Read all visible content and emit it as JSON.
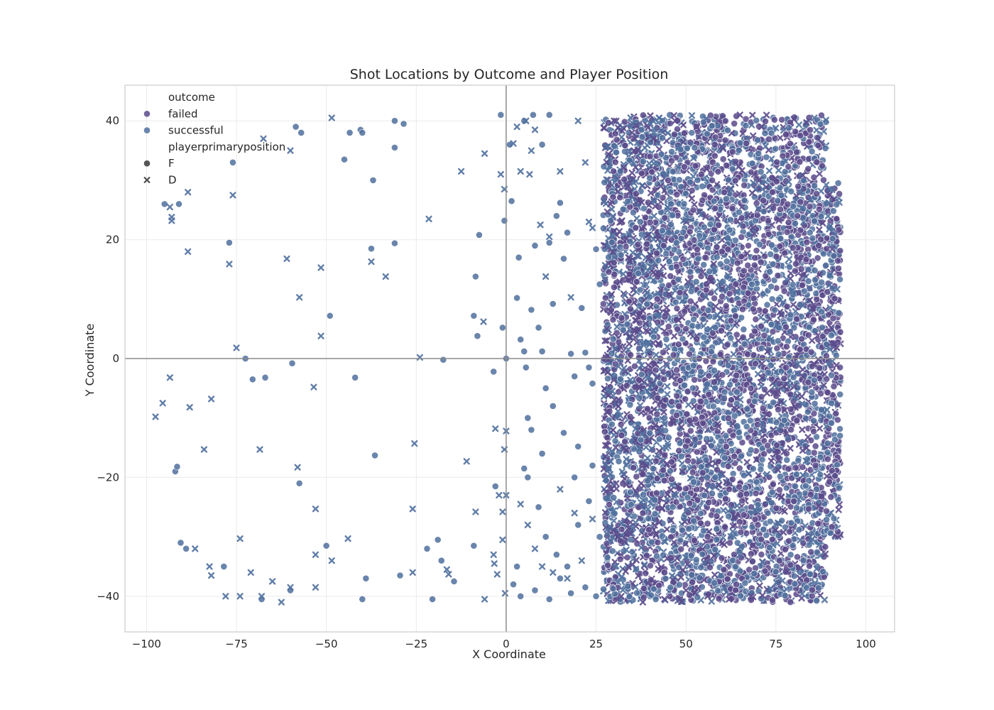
{
  "chart_data": {
    "type": "scatter",
    "title": "Shot Locations by Outcome and Player Position",
    "xlabel": "X Coordinate",
    "ylabel": "Y Coordinate",
    "xlim": [
      -106,
      108
    ],
    "ylim": [
      -46,
      46
    ],
    "xticks": [
      -100,
      -75,
      -50,
      -25,
      0,
      25,
      50,
      75,
      100
    ],
    "yticks": [
      -40,
      -20,
      0,
      20,
      40
    ],
    "xtick_labels": [
      "−100",
      "−75",
      "−50",
      "−25",
      "0",
      "25",
      "50",
      "75",
      "100"
    ],
    "ytick_labels": [
      "−40",
      "−20",
      "0",
      "20",
      "40"
    ],
    "grid": true,
    "reference_lines": {
      "x": 0,
      "y": 0
    },
    "legend": {
      "position": "top-left",
      "entries": [
        {
          "kind": "header",
          "label": "outcome"
        },
        {
          "kind": "hue",
          "label": "failed",
          "color": "#5b4a8b"
        },
        {
          "kind": "hue",
          "label": "successful",
          "color": "#50709e"
        },
        {
          "kind": "header",
          "label": "playerprimaryposition"
        },
        {
          "kind": "style",
          "label": "F",
          "marker": "circle"
        },
        {
          "kind": "style",
          "label": "D",
          "marker": "x"
        }
      ]
    },
    "colors": {
      "failed": "#5b4a8b",
      "successful": "#50709e",
      "style_marker": "#555555"
    },
    "series": [
      {
        "outcome": "successful",
        "marker": "circle",
        "points": [
          [
            -95,
            26
          ],
          [
            -91,
            26
          ],
          [
            -77,
            19.5
          ],
          [
            -76,
            33
          ],
          [
            -72.5,
            0
          ],
          [
            -70.5,
            -3.5
          ],
          [
            -67,
            -3.2
          ],
          [
            -92,
            -19
          ],
          [
            -91.5,
            -18.2
          ],
          [
            -90.5,
            -31
          ],
          [
            -89,
            -32
          ],
          [
            -78.5,
            -35
          ],
          [
            -68,
            -40.5
          ],
          [
            -60,
            -39
          ],
          [
            -58.5,
            39
          ],
          [
            -57,
            38
          ],
          [
            -59.5,
            -0.8
          ],
          [
            -57.5,
            -21
          ],
          [
            -49,
            7.2
          ],
          [
            -45,
            33.5
          ],
          [
            -43.5,
            38
          ],
          [
            -40.5,
            38.5
          ],
          [
            -40,
            38
          ],
          [
            -37,
            30
          ],
          [
            -37.5,
            18.5
          ],
          [
            -31,
            40
          ],
          [
            -31,
            35.5
          ],
          [
            -28.5,
            39.5
          ],
          [
            -31,
            19.4
          ],
          [
            -42,
            -3.2
          ],
          [
            -36.5,
            -16.3
          ],
          [
            -50,
            -31.5
          ],
          [
            -39,
            -37
          ],
          [
            -40,
            -40.5
          ],
          [
            -29.5,
            -36.5
          ],
          [
            -22,
            -32
          ],
          [
            -19,
            -30.5
          ],
          [
            -20.5,
            -40.5
          ],
          [
            -18,
            -34
          ],
          [
            -17.5,
            -0.2
          ],
          [
            -14.5,
            -37.5
          ],
          [
            -9,
            -31.5
          ],
          [
            -8.5,
            13.8
          ],
          [
            -7.5,
            20.8
          ],
          [
            -9,
            7.2
          ],
          [
            -8,
            3.8
          ],
          [
            -3.5,
            -2.2
          ],
          [
            -3,
            -21.5
          ],
          [
            -1,
            5.2
          ],
          [
            0,
            0
          ],
          [
            -1.5,
            41
          ],
          [
            -0.5,
            23.2
          ],
          [
            1,
            36
          ],
          [
            1.5,
            26.5
          ],
          [
            3,
            10.2
          ],
          [
            3.5,
            17
          ],
          [
            4,
            3.2
          ],
          [
            5,
            1.2
          ],
          [
            5.5,
            -1.5
          ],
          [
            6,
            -10
          ],
          [
            7,
            8.2
          ],
          [
            8,
            19
          ],
          [
            9,
            5.2
          ],
          [
            10,
            1.2
          ],
          [
            11,
            -5
          ],
          [
            12,
            19.5
          ],
          [
            13,
            9.2
          ],
          [
            14,
            24
          ],
          [
            15,
            26.2
          ],
          [
            16,
            16.8
          ],
          [
            17,
            21.2
          ],
          [
            18,
            0.8
          ],
          [
            19,
            -3
          ],
          [
            20,
            -14.8
          ],
          [
            21,
            8.5
          ],
          [
            22,
            1
          ],
          [
            23,
            -1.5
          ],
          [
            24,
            -4.2
          ],
          [
            25,
            18.4
          ],
          [
            26,
            12.5
          ],
          [
            7.5,
            41
          ],
          [
            12,
            41
          ],
          [
            5,
            40
          ],
          [
            10,
            36
          ],
          [
            2,
            -38
          ],
          [
            4,
            -40
          ],
          [
            8,
            -39
          ],
          [
            12,
            -40.5
          ],
          [
            15,
            -37
          ],
          [
            18,
            -39.5
          ],
          [
            22,
            -38.5
          ],
          [
            25,
            -40
          ],
          [
            6,
            -20
          ],
          [
            9,
            -25
          ],
          [
            11,
            -30
          ],
          [
            14,
            -33
          ],
          [
            17,
            -35
          ],
          [
            20,
            -28
          ],
          [
            23,
            -24
          ],
          [
            26,
            -30
          ],
          [
            3,
            -35
          ],
          [
            5,
            -18.5
          ],
          [
            7,
            -12
          ],
          [
            10,
            -16
          ],
          [
            13,
            -8
          ],
          [
            16,
            -12.5
          ],
          [
            19,
            -20
          ],
          [
            24,
            -18
          ]
        ]
      },
      {
        "outcome": "successful",
        "marker": "x",
        "points": [
          [
            -97.5,
            -9.8
          ],
          [
            -95.5,
            -7.5
          ],
          [
            -93.5,
            -3.2
          ],
          [
            -93.5,
            25.5
          ],
          [
            -93,
            23.8
          ],
          [
            -93,
            23.2
          ],
          [
            -88.5,
            28
          ],
          [
            -88.5,
            18
          ],
          [
            -88,
            -8.2
          ],
          [
            -86.5,
            -32
          ],
          [
            -84,
            -15.3
          ],
          [
            -82.5,
            -35
          ],
          [
            -82,
            -36.5
          ],
          [
            -82,
            -6.8
          ],
          [
            -78,
            -40
          ],
          [
            -77,
            15.9
          ],
          [
            -76,
            27.5
          ],
          [
            -75,
            1.8
          ],
          [
            -74,
            -40
          ],
          [
            -74,
            -30.3
          ],
          [
            -71,
            -36
          ],
          [
            -68,
            -40
          ],
          [
            -68.5,
            -15.3
          ],
          [
            -67.5,
            37
          ],
          [
            -65,
            -37.5
          ],
          [
            -62.5,
            -41
          ],
          [
            -61,
            16.8
          ],
          [
            -60,
            35
          ],
          [
            -60,
            -38.5
          ],
          [
            -58,
            -18.3
          ],
          [
            -57.5,
            10.3
          ],
          [
            -53.5,
            -4.8
          ],
          [
            -53,
            -25.3
          ],
          [
            -53,
            -33
          ],
          [
            -53,
            -38.5
          ],
          [
            -51.5,
            15.3
          ],
          [
            -51.5,
            3.8
          ],
          [
            -48.5,
            40.5
          ],
          [
            -48.5,
            -34
          ],
          [
            -44,
            -30.3
          ],
          [
            -37.5,
            16.3
          ],
          [
            -33.5,
            13.8
          ],
          [
            -26,
            -25.3
          ],
          [
            -26,
            -36
          ],
          [
            -25.5,
            -14.3
          ],
          [
            -24,
            0.2
          ],
          [
            -21.5,
            23.5
          ],
          [
            -16.5,
            -35.5
          ],
          [
            -16,
            -36.3
          ],
          [
            -12.5,
            31.5
          ],
          [
            -11,
            -17.3
          ],
          [
            -8.5,
            -25.8
          ],
          [
            -6,
            34.5
          ],
          [
            -6,
            -40.5
          ],
          [
            -6.3,
            6.2
          ],
          [
            -3.5,
            -33
          ],
          [
            -3.3,
            -34.5
          ],
          [
            -3,
            -11.8
          ],
          [
            -2.5,
            -36.3
          ],
          [
            -2,
            -23
          ],
          [
            -1.5,
            31
          ],
          [
            -1,
            -25.8
          ],
          [
            -1,
            -30.5
          ],
          [
            -0.5,
            28.5
          ],
          [
            -0.5,
            -15.3
          ],
          [
            0,
            -12.2
          ],
          [
            0,
            -23
          ],
          [
            -0.3,
            -39.5
          ],
          [
            2,
            36.2
          ],
          [
            3,
            39
          ],
          [
            4,
            31.5
          ],
          [
            5.5,
            40
          ],
          [
            6.5,
            31
          ],
          [
            7,
            35
          ],
          [
            8,
            38.5
          ],
          [
            9.5,
            22.5
          ],
          [
            11,
            13.8
          ],
          [
            12,
            20.5
          ],
          [
            15,
            31.5
          ],
          [
            18,
            10.3
          ],
          [
            20,
            40
          ],
          [
            22,
            33
          ],
          [
            23,
            23
          ],
          [
            24,
            22
          ],
          [
            4,
            -24.5
          ],
          [
            6,
            -28
          ],
          [
            8,
            -32
          ],
          [
            10,
            -35
          ],
          [
            13,
            -36
          ],
          [
            17,
            -37
          ],
          [
            21,
            -34
          ],
          [
            24,
            -27
          ],
          [
            15,
            -22
          ],
          [
            19,
            -26
          ]
        ]
      },
      {
        "outcome": "failed",
        "marker": "circle",
        "points": [
          [
            40,
            34
          ],
          [
            45,
            30
          ],
          [
            52,
            25
          ],
          [
            60,
            18
          ],
          [
            66,
            12
          ],
          [
            72,
            8
          ],
          [
            78,
            2
          ],
          [
            84,
            -4
          ],
          [
            48,
            -8
          ],
          [
            55,
            -15
          ],
          [
            62,
            -22
          ],
          [
            70,
            -28
          ],
          [
            76,
            -34
          ],
          [
            44,
            -36
          ],
          [
            36,
            22
          ],
          [
            38,
            -26
          ],
          [
            58,
            36
          ],
          [
            64,
            -38
          ],
          [
            81,
            24
          ],
          [
            86,
            -18
          ],
          [
            30,
            12
          ],
          [
            33,
            -14
          ],
          [
            50,
            5
          ],
          [
            68,
            -5
          ],
          [
            74,
            28
          ],
          [
            42,
            10
          ],
          [
            56,
            -30
          ],
          [
            80,
            -24
          ]
        ]
      },
      {
        "outcome": "failed",
        "marker": "x",
        "points": [
          [
            30,
            40
          ],
          [
            35,
            38
          ],
          [
            41,
            37
          ],
          [
            47,
            40
          ],
          [
            53,
            39
          ],
          [
            59,
            40
          ],
          [
            65,
            41
          ],
          [
            71,
            39
          ],
          [
            32,
            -40
          ],
          [
            38,
            -41
          ],
          [
            44,
            -40.5
          ],
          [
            50,
            -39
          ],
          [
            56,
            -40
          ],
          [
            62,
            -40.5
          ],
          [
            68,
            -40
          ],
          [
            29,
            26
          ],
          [
            29,
            -22
          ],
          [
            28,
            5
          ],
          [
            31,
            -30
          ],
          [
            34,
            17
          ],
          [
            37,
            -5
          ],
          [
            43,
            29
          ],
          [
            49,
            -19
          ],
          [
            57,
            13
          ],
          [
            63,
            -11
          ],
          [
            69,
            21
          ],
          [
            75,
            -16
          ]
        ]
      }
    ],
    "dense_regions": [
      {
        "x": [
          27,
          89
        ],
        "y": [
          -41,
          41
        ]
      },
      {
        "x": [
          89,
          93
        ],
        "y": [
          -30,
          30
        ]
      }
    ]
  }
}
